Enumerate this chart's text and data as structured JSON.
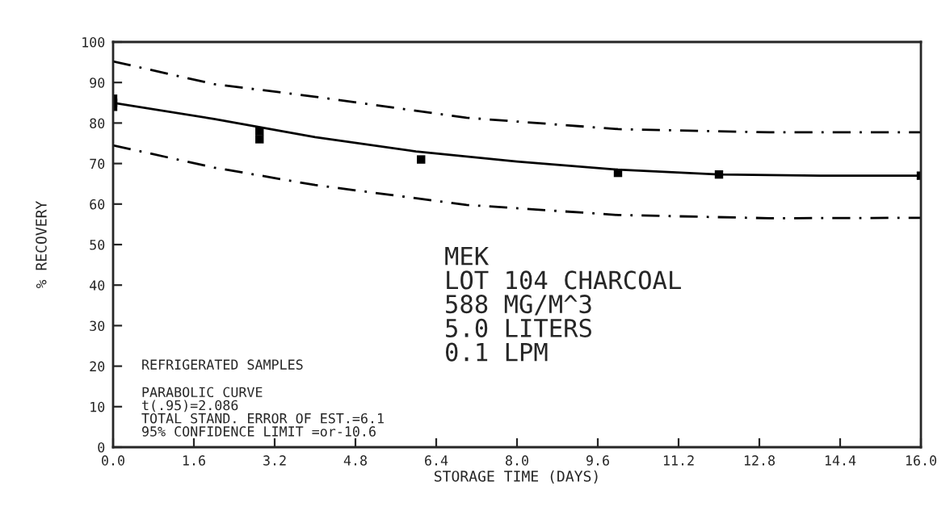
{
  "chart_data": {
    "type": "line",
    "xlabel": "STORAGE TIME (DAYS)",
    "ylabel": "% RECOVERY",
    "xlim": [
      0,
      16
    ],
    "ylim": [
      0,
      100
    ],
    "xticks": [
      {
        "value": 0,
        "label": "0.0"
      },
      {
        "value": 1.6,
        "label": "1.6"
      },
      {
        "value": 3.2,
        "label": "3.2"
      },
      {
        "value": 4.8,
        "label": "4.8"
      },
      {
        "value": 6.4,
        "label": "6.4"
      },
      {
        "value": 8,
        "label": "8.0"
      },
      {
        "value": 9.6,
        "label": "9.6"
      },
      {
        "value": 11.2,
        "label": "11.2"
      },
      {
        "value": 12.8,
        "label": "12.8"
      },
      {
        "value": 14.4,
        "label": "14.4"
      },
      {
        "value": 16,
        "label": "16.0"
      }
    ],
    "yticks": [
      0,
      10,
      20,
      30,
      40,
      50,
      60,
      70,
      80,
      90,
      100
    ],
    "grid": false,
    "series": [
      {
        "color": "#000000",
        "line_style": "solid",
        "marker": "none",
        "x": [
          0,
          2,
          4,
          6,
          8,
          10,
          12,
          14,
          16
        ],
        "values": [
          85,
          81,
          76.5,
          73,
          70.5,
          68.5,
          67.3,
          67,
          67
        ]
      },
      {
        "color": "#000000",
        "line_style": "dashed",
        "marker": "none",
        "x": [
          0,
          2,
          4,
          7,
          10,
          13,
          16
        ],
        "values": [
          95.2,
          89.6,
          86.5,
          81.3,
          78.5,
          77.7,
          77.7
        ]
      },
      {
        "color": "#000000",
        "line_style": "dashed",
        "marker": "none",
        "x": [
          0,
          2,
          4,
          7,
          10,
          13,
          16
        ],
        "values": [
          74.5,
          69,
          64.7,
          59.8,
          57.3,
          56.5,
          56.6
        ]
      },
      {
        "type": "scatter",
        "color": "#000000",
        "marker": "square",
        "x": [
          0,
          0,
          0,
          2.9,
          2.9,
          6.1,
          10,
          12,
          16
        ],
        "values": [
          86,
          85,
          84,
          78,
          76,
          71,
          67.7,
          67.3,
          67
        ]
      }
    ],
    "annotations": [
      "REFRIGERATED SAMPLES",
      "PARABOLIC CURVE\nt(.95)=2.086\nTOTAL STAND. ERROR OF EST.=6.1\n95% CONFIDENCE LIMIT =or-10.6",
      "MEK\nLOT 104 CHARCOAL\n588 MG/M^3\n5.0 LITERS\n0.1 LPM"
    ]
  }
}
